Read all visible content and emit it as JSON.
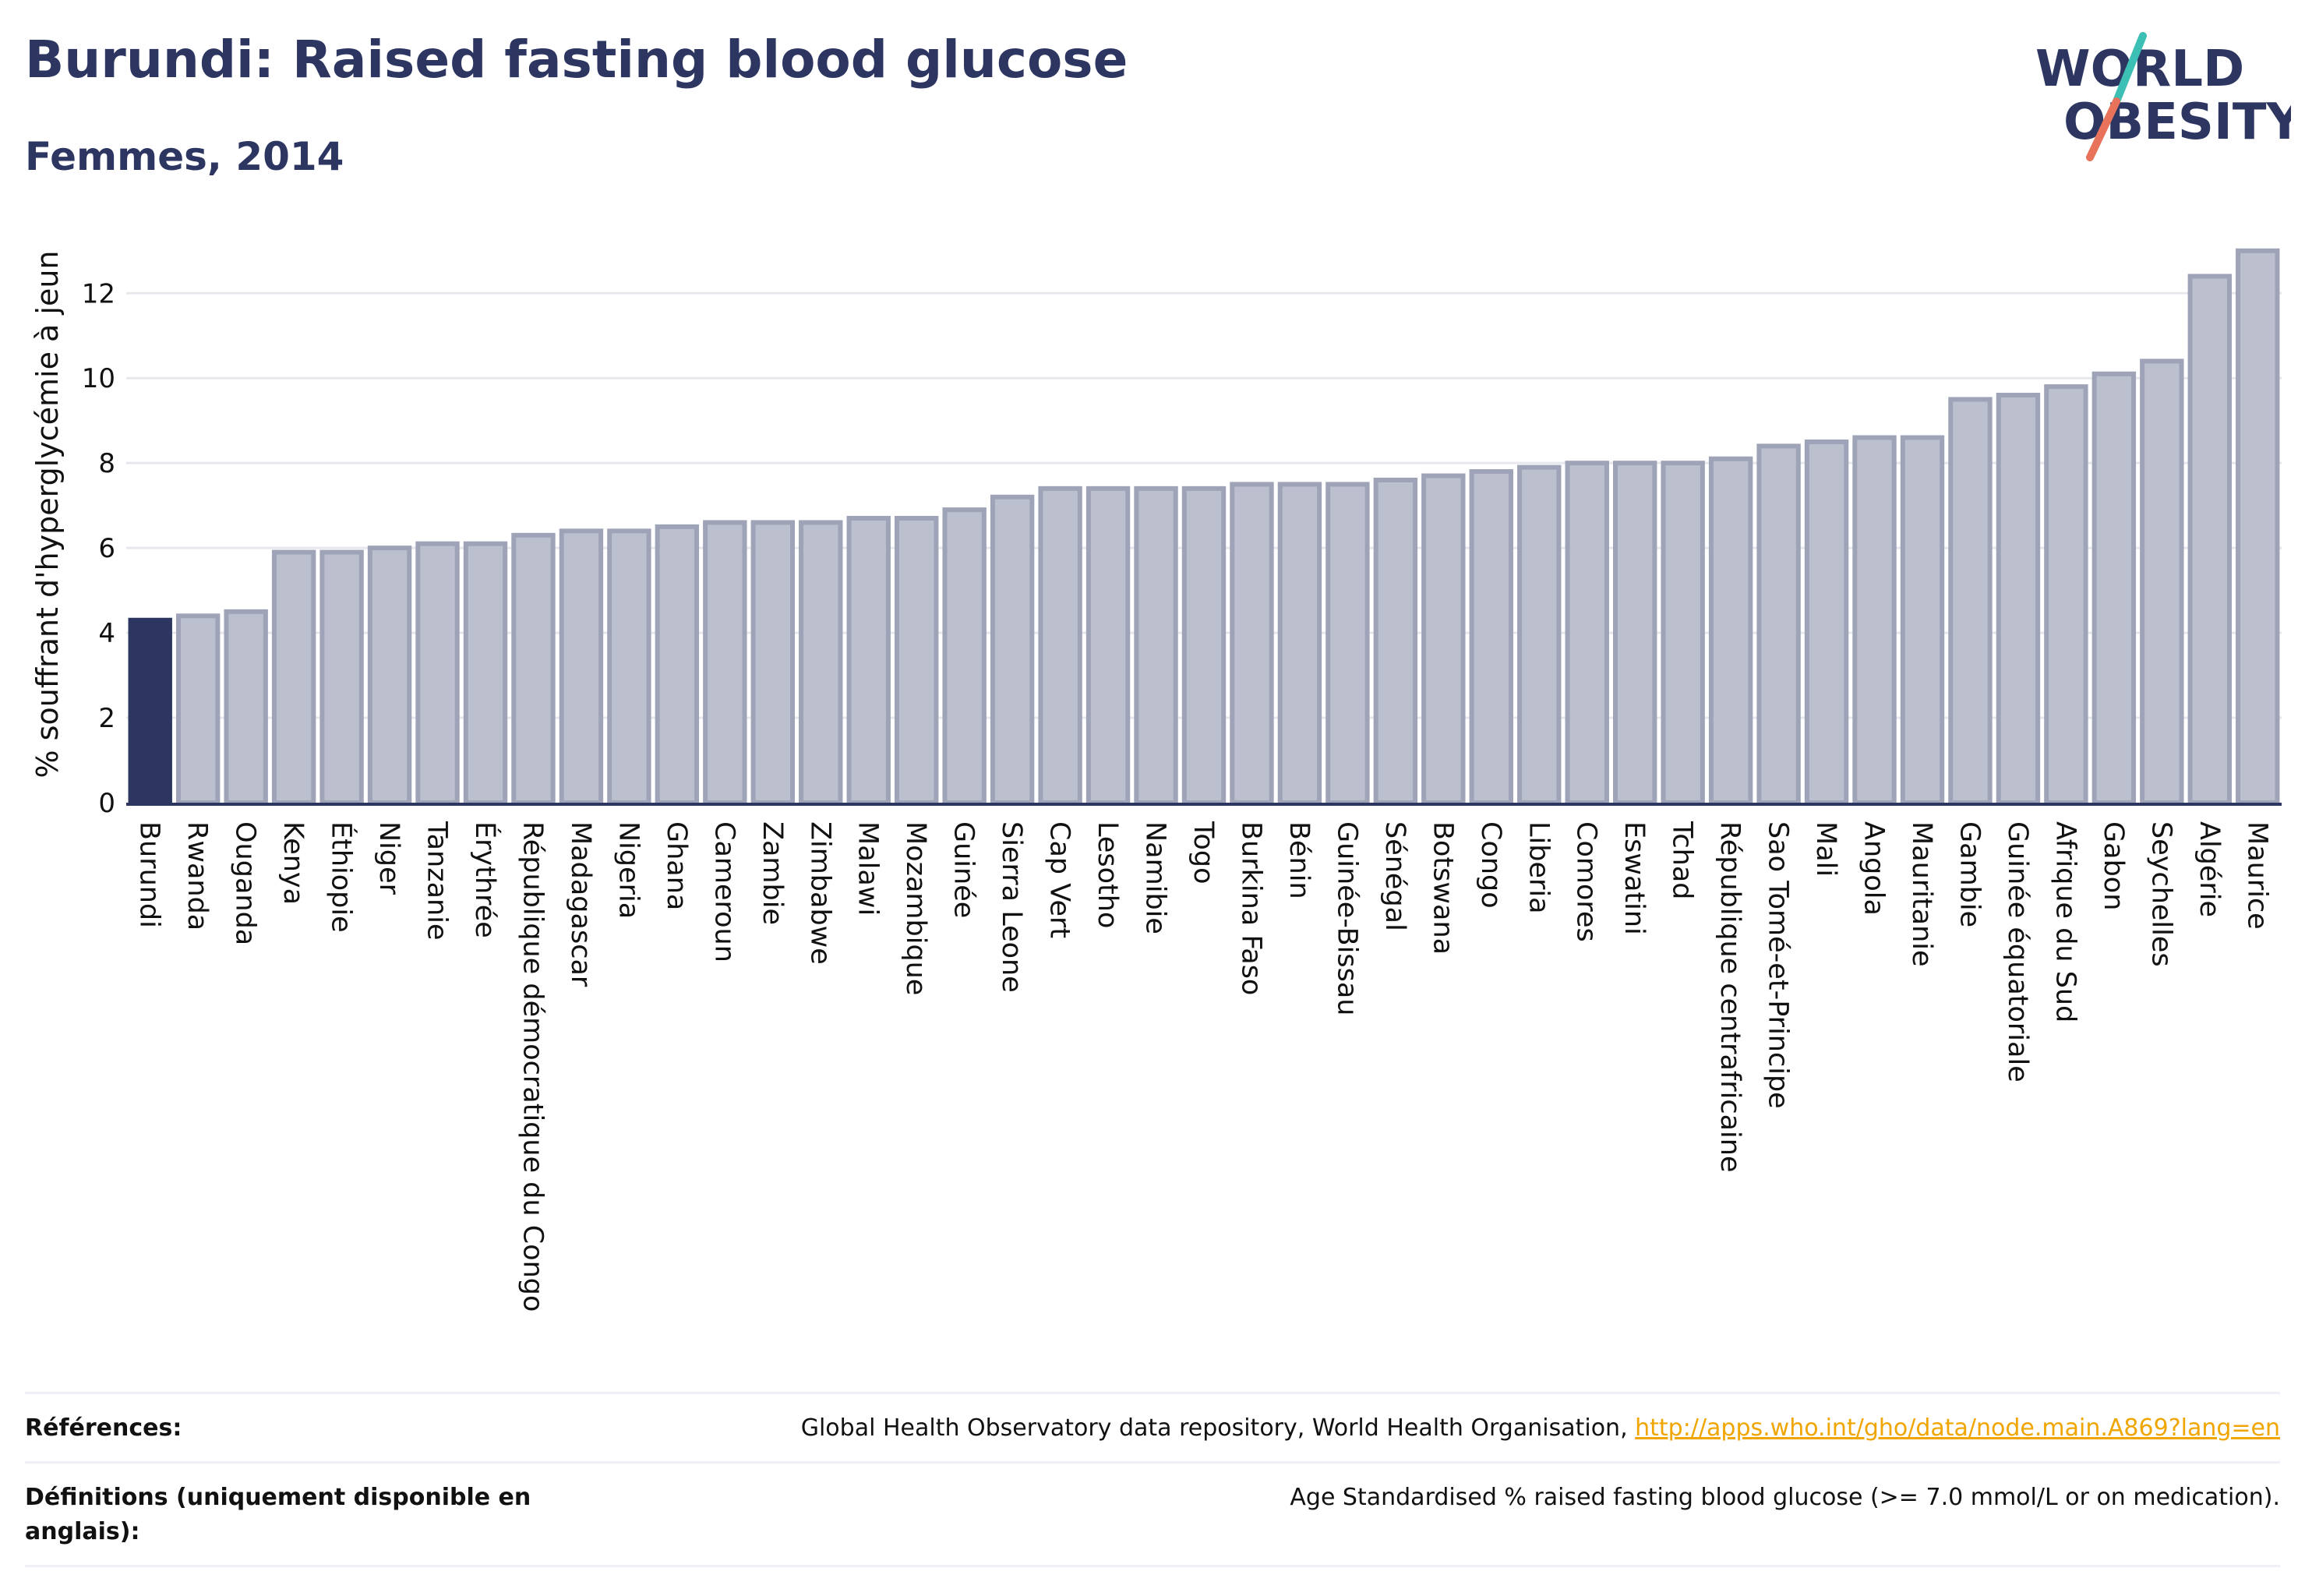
{
  "header": {
    "title": "Burundi: Raised fasting blood glucose",
    "subtitle": "Femmes, 2014"
  },
  "logo": {
    "line1": "WORLD",
    "line2": "OBESITY",
    "colors": {
      "text": "#2d3561",
      "slash_top": "#3cbfb4",
      "slash_bottom": "#e8735a"
    }
  },
  "chart_data": {
    "type": "bar",
    "ylabel": "% souffrant d'hyperglycémie à jeun",
    "xlabel": "",
    "ylim": [
      0,
      13.4
    ],
    "yticks": [
      0,
      2,
      4,
      6,
      8,
      10,
      12
    ],
    "grid": true,
    "highlight": "Burundi",
    "colors": {
      "highlight": "#2d3561",
      "bar": "#bcc0ce",
      "bar_edge": "#9ea3b8",
      "grid": "#e6e8ee",
      "axis": "#2d3561"
    },
    "categories": [
      "Burundi",
      "Rwanda",
      "Ouganda",
      "Kenya",
      "Éthiopie",
      "Niger",
      "Tanzanie",
      "Érythrée",
      "République démocratique du Congo",
      "Madagascar",
      "Nigeria",
      "Ghana",
      "Cameroun",
      "Zambie",
      "Zimbabwe",
      "Malawi",
      "Mozambique",
      "Guinée",
      "Sierra Leone",
      "Cap Vert",
      "Lesotho",
      "Namibie",
      "Togo",
      "Burkina Faso",
      "Bénin",
      "Guinée-Bissau",
      "Sénégal",
      "Botswana",
      "Congo",
      "Liberia",
      "Comores",
      "Eswatini",
      "Tchad",
      "République centrafricaine",
      "Sao Tomé-et-Principe",
      "Mali",
      "Angola",
      "Mauritanie",
      "Gambie",
      "Guinée équatoriale",
      "Afrique du Sud",
      "Gabon",
      "Seychelles",
      "Algérie",
      "Maurice"
    ],
    "values": [
      4.3,
      4.4,
      4.5,
      5.9,
      5.9,
      6.0,
      6.1,
      6.1,
      6.3,
      6.4,
      6.4,
      6.5,
      6.6,
      6.6,
      6.6,
      6.7,
      6.7,
      6.9,
      7.2,
      7.4,
      7.4,
      7.4,
      7.4,
      7.5,
      7.5,
      7.5,
      7.6,
      7.7,
      7.8,
      7.9,
      8.0,
      8.0,
      8.0,
      8.1,
      8.4,
      8.5,
      8.6,
      8.6,
      9.5,
      9.6,
      9.8,
      10.1,
      10.4,
      12.4,
      13.0
    ]
  },
  "footer": {
    "references_label": "Références:",
    "references_text": "Global Health Observatory data repository, World Health Organisation, ",
    "references_link": "http://apps.who.int/gho/data/node.main.A869?lang=en",
    "definitions_label": "Définitions (uniquement disponible en anglais):",
    "definitions_text": "Age Standardised % raised fasting blood glucose (>= 7.0 mmol/L or on medication)."
  }
}
